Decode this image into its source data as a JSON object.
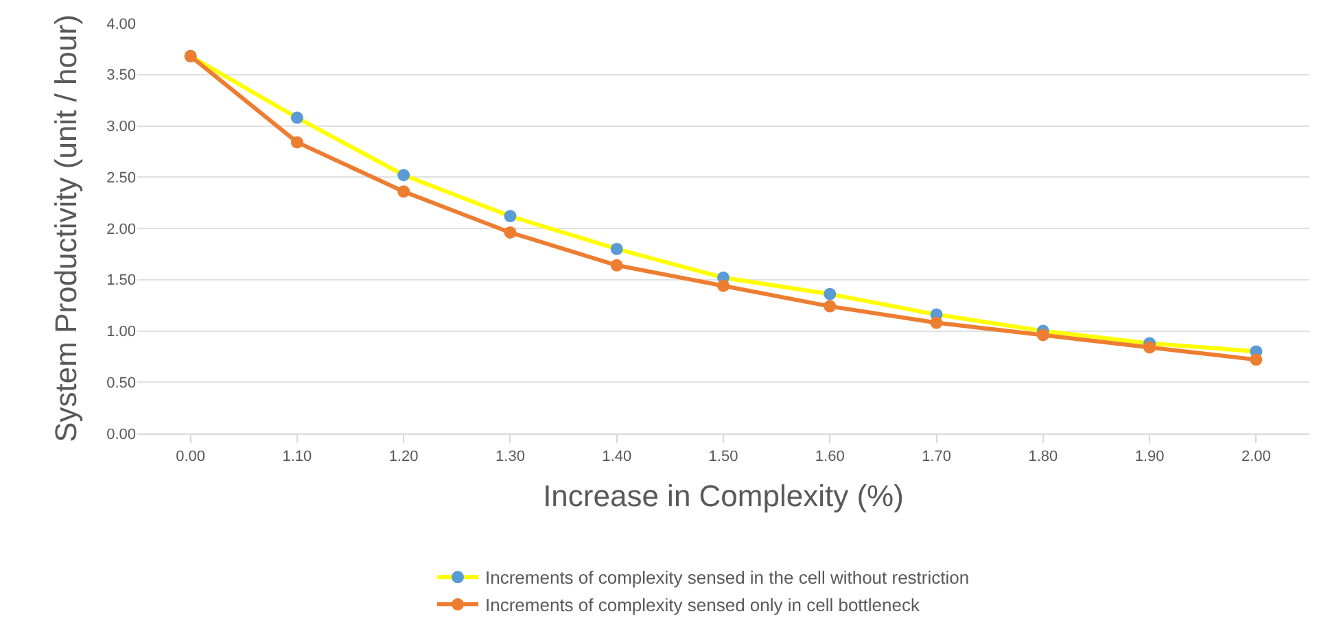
{
  "chart_data": {
    "type": "line",
    "xlabel": "Increase in Complexity (%)",
    "ylabel": "System Productivity (unit / hour)",
    "categories": [
      "0.00",
      "1.10",
      "1.20",
      "1.30",
      "1.40",
      "1.50",
      "1.60",
      "1.70",
      "1.80",
      "1.90",
      "2.00"
    ],
    "series": [
      {
        "name": "Increments of complexity sensed in the cell without restriction",
        "color": "#ffff00",
        "colors": [
          "#5b9bd5",
          "#5b9bd5",
          "#5b9bd5",
          "#5b9bd5",
          "#5b9bd5",
          "#5b9bd5",
          "#5b9bd5",
          "#5b9bd5",
          "#5b9bd5",
          "#5b9bd5",
          "#5b9bd5"
        ],
        "values": [
          3.68,
          3.08,
          2.52,
          2.12,
          1.8,
          1.52,
          1.36,
          1.16,
          1.0,
          0.88,
          0.8
        ]
      },
      {
        "name": "Increments of complexity sensed only in cell bottleneck",
        "color": "#ed7d31",
        "values": [
          3.68,
          2.84,
          2.36,
          1.96,
          1.64,
          1.44,
          1.24,
          1.08,
          0.96,
          0.84,
          0.72
        ]
      }
    ],
    "ylim": [
      0,
      4
    ],
    "yticks": [
      {
        "value": 0,
        "label": "0.00"
      },
      {
        "value": 0.5,
        "label": "0.50"
      },
      {
        "value": 1,
        "label": "1.00"
      },
      {
        "value": 1.5,
        "label": "1.50"
      },
      {
        "value": 2,
        "label": "2.00"
      },
      {
        "value": 2.5,
        "label": "2.50"
      },
      {
        "value": 3,
        "label": "3.00"
      },
      {
        "value": 3.5,
        "label": "3.50"
      },
      {
        "value": 4,
        "label": "4.00"
      }
    ],
    "grid": "y",
    "legend": "bottom",
    "marker": "circle",
    "line_style": "solid"
  }
}
